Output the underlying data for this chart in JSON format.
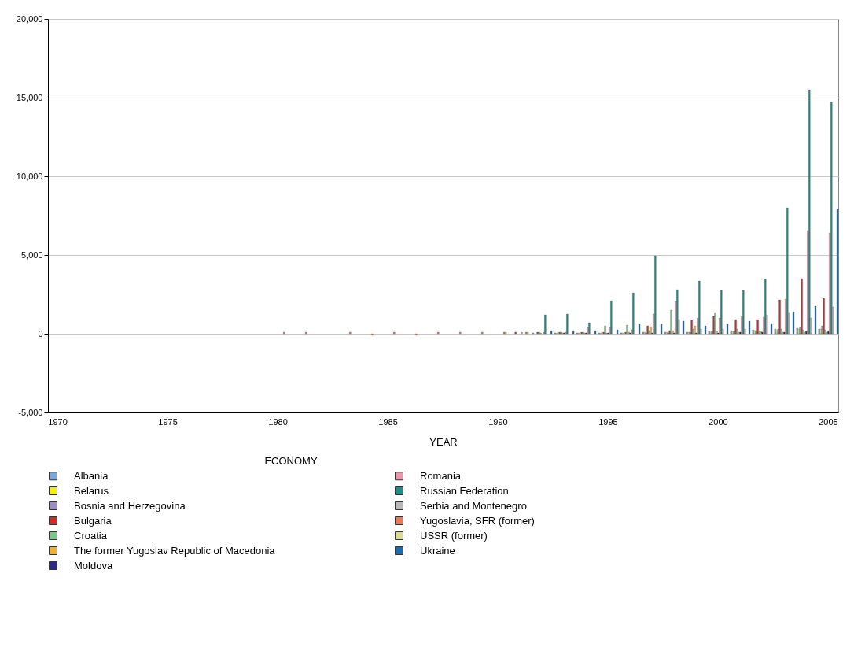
{
  "chart_data": {
    "type": "bar",
    "xlabel": "YEAR",
    "legend_title": "ECONOMY",
    "legend": "bottom",
    "grid": "y",
    "categories": [
      "1970",
      null,
      null,
      null,
      null,
      "1975",
      null,
      null,
      null,
      null,
      "1980",
      null,
      null,
      null,
      null,
      "1985",
      null,
      null,
      null,
      null,
      "1990",
      null,
      null,
      null,
      null,
      "1995",
      null,
      null,
      null,
      null,
      "2000",
      null,
      null,
      null,
      null,
      "2005"
    ],
    "ylim": [
      -5000,
      20000
    ],
    "yticks": [
      {
        "value": -5000,
        "label": "-5,000"
      },
      0,
      {
        "value": 5000,
        "label": "5,000"
      },
      {
        "value": 10000,
        "label": "10,000"
      },
      {
        "value": 15000,
        "label": "15,000"
      },
      {
        "value": 20000,
        "label": "20,000"
      }
    ],
    "series": [
      {
        "name": "Albania",
        "color": "#7ea6d8",
        "values": [
          null,
          null,
          null,
          null,
          null,
          null,
          null,
          null,
          null,
          null,
          null,
          null,
          null,
          null,
          null,
          null,
          null,
          null,
          null,
          null,
          null,
          null,
          50,
          50,
          50,
          50,
          50,
          100,
          100,
          100,
          150,
          200,
          250,
          300,
          350,
          300
        ]
      },
      {
        "name": "Belarus",
        "color": "#f2f200",
        "values": [
          null,
          null,
          null,
          null,
          null,
          null,
          null,
          null,
          null,
          null,
          null,
          null,
          null,
          null,
          null,
          null,
          null,
          null,
          null,
          null,
          null,
          null,
          null,
          50,
          50,
          50,
          50,
          100,
          100,
          100,
          100,
          150,
          200,
          200,
          300,
          300
        ]
      },
      {
        "name": "Bosnia and Herzegovina",
        "color": "#9d8fc2",
        "values": [
          null,
          null,
          null,
          null,
          null,
          null,
          null,
          null,
          null,
          null,
          null,
          null,
          null,
          null,
          null,
          null,
          null,
          null,
          null,
          null,
          null,
          null,
          null,
          null,
          null,
          null,
          null,
          50,
          50,
          100,
          150,
          150,
          200,
          300,
          400,
          500
        ]
      },
      {
        "name": "Bulgaria",
        "color": "#d42a2a",
        "values": [
          null,
          null,
          null,
          null,
          null,
          null,
          null,
          null,
          null,
          null,
          null,
          null,
          null,
          null,
          null,
          null,
          null,
          null,
          null,
          null,
          null,
          100,
          100,
          100,
          100,
          100,
          100,
          500,
          200,
          850,
          1100,
          900,
          900,
          2150,
          3500,
          2250
        ]
      },
      {
        "name": "Croatia",
        "color": "#7fc48a",
        "values": [
          null,
          null,
          null,
          null,
          null,
          null,
          null,
          null,
          null,
          null,
          null,
          null,
          null,
          null,
          null,
          null,
          null,
          null,
          null,
          null,
          null,
          null,
          100,
          100,
          100,
          500,
          550,
          200,
          1500,
          300,
          1350,
          300,
          200,
          300,
          250,
          250
        ]
      },
      {
        "name": "The former Yugoslav Republic of Macedonia",
        "color": "#f0b030",
        "values": [
          null,
          null,
          null,
          null,
          null,
          null,
          null,
          null,
          null,
          null,
          null,
          null,
          null,
          null,
          null,
          null,
          null,
          null,
          null,
          null,
          null,
          null,
          50,
          50,
          50,
          50,
          100,
          450,
          200,
          500,
          150,
          100,
          150,
          100,
          100,
          100
        ]
      },
      {
        "name": "Moldova",
        "color": "#2a2a8f",
        "values": [
          null,
          null,
          null,
          null,
          null,
          null,
          null,
          null,
          null,
          null,
          null,
          null,
          null,
          null,
          null,
          null,
          null,
          null,
          null,
          null,
          null,
          null,
          null,
          50,
          50,
          50,
          50,
          50,
          50,
          50,
          50,
          100,
          100,
          100,
          150,
          200
        ]
      },
      {
        "name": "Romania",
        "color": "#e897b0",
        "values": [
          null,
          null,
          null,
          null,
          null,
          null,
          null,
          null,
          null,
          null,
          null,
          null,
          null,
          null,
          null,
          null,
          null,
          null,
          null,
          null,
          null,
          100,
          100,
          100,
          400,
          400,
          250,
          1250,
          2050,
          1000,
          1000,
          1100,
          1050,
          2200,
          6550,
          6400
        ]
      },
      {
        "name": "Russian Federation",
        "color": "#139488",
        "values": [
          null,
          null,
          null,
          null,
          null,
          null,
          null,
          null,
          null,
          null,
          null,
          null,
          null,
          null,
          null,
          null,
          null,
          null,
          null,
          null,
          null,
          null,
          1200,
          1250,
          700,
          2100,
          2600,
          4950,
          2800,
          3350,
          2750,
          2750,
          3450,
          8000,
          15500,
          14700
        ]
      },
      {
        "name": "Serbia and Montenegro",
        "color": "#b8b8b8",
        "values": [
          null,
          null,
          null,
          null,
          null,
          null,
          null,
          null,
          null,
          null,
          null,
          null,
          null,
          null,
          null,
          null,
          null,
          null,
          null,
          null,
          null,
          null,
          null,
          null,
          null,
          null,
          null,
          null,
          900,
          300,
          300,
          300,
          1200,
          1350,
          1000,
          1700
        ]
      },
      {
        "name": "Yugoslavia, SFR (former)",
        "color": "#e87a5a",
        "values": [
          null,
          null,
          null,
          null,
          null,
          null,
          null,
          null,
          null,
          null,
          100,
          100,
          null,
          100,
          -100,
          100,
          -100,
          100,
          100,
          100,
          100,
          100,
          null,
          null,
          null,
          null,
          null,
          null,
          null,
          null,
          null,
          null,
          null,
          null,
          null,
          null
        ]
      },
      {
        "name": "USSR (former)",
        "color": "#dcd896",
        "values": [
          null,
          null,
          null,
          null,
          null,
          null,
          null,
          null,
          null,
          null,
          null,
          null,
          null,
          null,
          null,
          null,
          null,
          null,
          null,
          null,
          100,
          100,
          null,
          null,
          null,
          null,
          null,
          null,
          null,
          null,
          null,
          null,
          null,
          null,
          null,
          null
        ]
      },
      {
        "name": "Ukraine",
        "color": "#1a6cb0",
        "values": [
          null,
          null,
          null,
          null,
          null,
          null,
          null,
          null,
          null,
          null,
          null,
          null,
          null,
          null,
          null,
          null,
          null,
          null,
          null,
          null,
          null,
          null,
          200,
          200,
          200,
          250,
          600,
          600,
          800,
          500,
          600,
          800,
          650,
          1400,
          1750,
          7900
        ]
      }
    ]
  }
}
